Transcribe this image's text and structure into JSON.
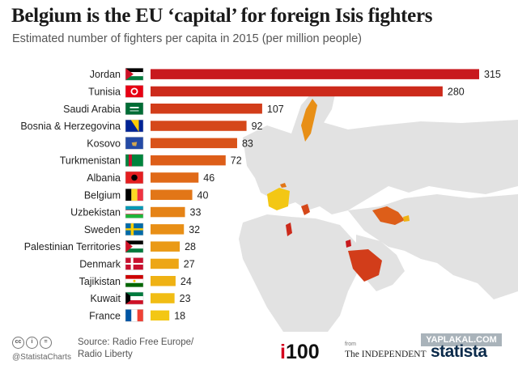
{
  "header": {
    "title": "Belgium is the EU ‘capital’ for foreign Isis fighters",
    "subtitle": "Estimated number of fighters per capita in 2015 (per million people)"
  },
  "chart_data": {
    "type": "bar",
    "orientation": "horizontal",
    "title": "Belgium is the EU ‘capital’ for foreign Isis fighters",
    "subtitle": "Estimated number of fighters per capita in 2015 (per million people)",
    "categories": [
      "Jordan",
      "Tunisia",
      "Saudi Arabia",
      "Bosnia & Herzegovina",
      "Kosovo",
      "Turkmenistan",
      "Albania",
      "Belgium",
      "Uzbekistan",
      "Sweden",
      "Palestinian Territories",
      "Denmark",
      "Tajikistan",
      "Kuwait",
      "France"
    ],
    "values": [
      315,
      280,
      107,
      92,
      83,
      72,
      46,
      40,
      33,
      32,
      28,
      27,
      24,
      23,
      18
    ],
    "bar_colors": [
      "#c8191e",
      "#cc2a1b",
      "#d23d1a",
      "#d5481a",
      "#d9531a",
      "#dd5e19",
      "#e06a18",
      "#e27617",
      "#e58317",
      "#e88f16",
      "#ea9a16",
      "#eda615",
      "#efb214",
      "#f1bd14",
      "#f3c714"
    ],
    "flags": [
      "jordan-flag",
      "tunisia-flag",
      "saudi-arabia-flag",
      "bosnia-flag",
      "kosovo-flag",
      "turkmenistan-flag",
      "albania-flag",
      "belgium-flag",
      "uzbekistan-flag",
      "sweden-flag",
      "palestine-flag",
      "denmark-flag",
      "tajikistan-flag",
      "kuwait-flag",
      "france-flag"
    ],
    "xlim": [
      0,
      315
    ],
    "grid": false,
    "legend": "none"
  },
  "footer": {
    "credit": "@StatistaCharts",
    "source_line1": "Source: Radio Free Europe/",
    "source_line2": "Radio Liberty",
    "logo_i100_i": "i",
    "logo_i100_rest": "100",
    "logo_from": "from",
    "logo_independent": "The INDEPENDENT",
    "logo_statista": "statista",
    "watermark": "YAPLAKAL.COM",
    "license_icons": [
      "cc-icon",
      "by-icon",
      "nd-icon"
    ]
  }
}
